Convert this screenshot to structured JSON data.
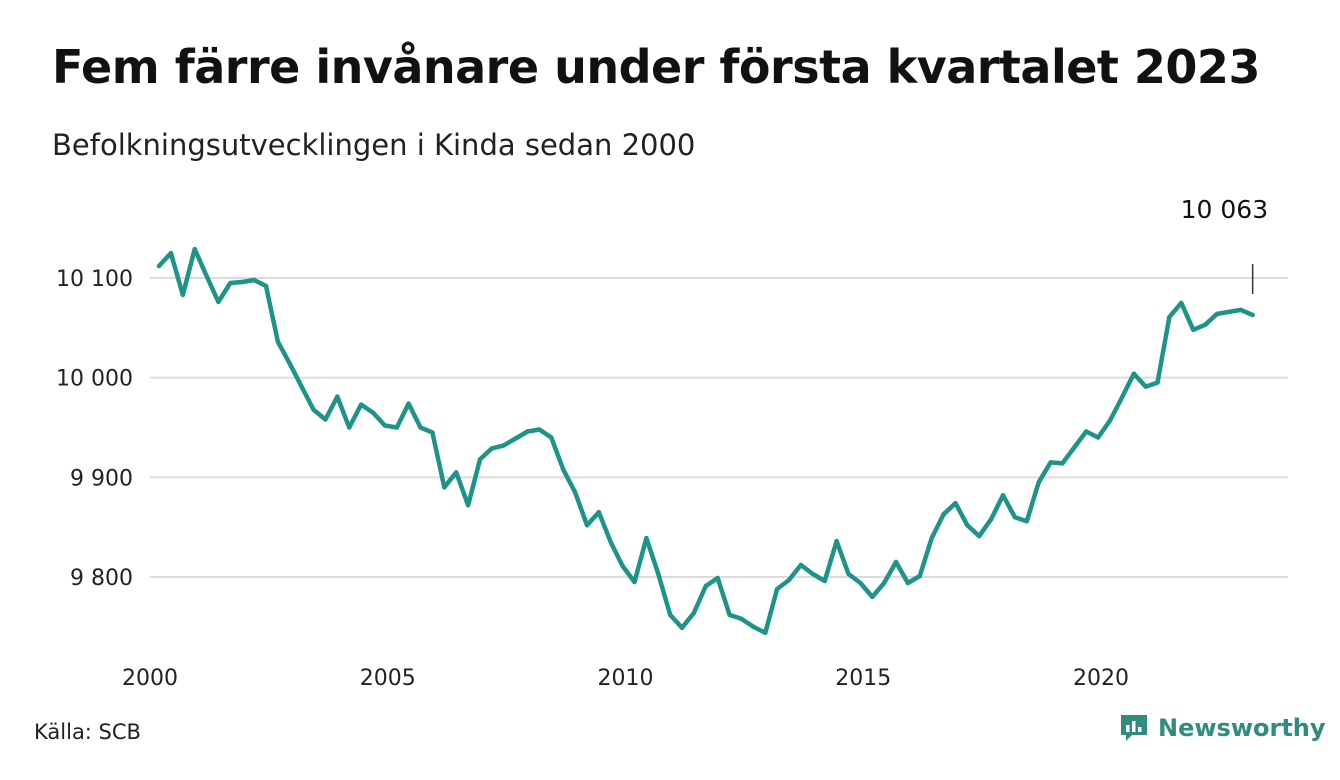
{
  "title": "Fem färre invånare under första kvartalet 2023",
  "subtitle": "Befolkningsutvecklingen i Kinda sedan 2000",
  "source": "Källa: SCB",
  "brand": {
    "name": "Newsworthy",
    "icon": "newsworthy-chart-bubble-icon",
    "color": "#2f8c7e"
  },
  "colors": {
    "line": "#1e9488",
    "grid": "#dcdcdc",
    "text": "#222222"
  },
  "chart_data": {
    "type": "line",
    "title": "Fem färre invånare under första kvartalet 2023",
    "subtitle": "Befolkningsutvecklingen i Kinda sedan 2000",
    "x_unit": "year (quarterly)",
    "x_start": 2000,
    "x_step": 0.25,
    "xlim": [
      2000,
      2023
    ],
    "ylim": [
      9735,
      10130
    ],
    "x_ticks": [
      2000,
      2005,
      2010,
      2015,
      2020
    ],
    "x_tick_labels": [
      "2000",
      "2005",
      "2010",
      "2015",
      "2020"
    ],
    "y_ticks": [
      9800,
      9900,
      10000,
      10100
    ],
    "y_tick_labels": [
      "9 800",
      "9 900",
      "10 000",
      "10 100"
    ],
    "grid": "horizontal",
    "legend": "none",
    "last_label": "10 063",
    "values": [
      10112,
      10125,
      10083,
      10129,
      10102,
      10076,
      10095,
      10096,
      10098,
      10092,
      10036,
      10014,
      9991,
      9968,
      9958,
      9981,
      9950,
      9973,
      9965,
      9952,
      9950,
      9974,
      9950,
      9945,
      9890,
      9905,
      9872,
      9918,
      9929,
      9932,
      9939,
      9946,
      9948,
      9940,
      9908,
      9885,
      9852,
      9865,
      9835,
      9811,
      9795,
      9839,
      9803,
      9762,
      9749,
      9764,
      9791,
      9799,
      9762,
      9758,
      9750,
      9744,
      9788,
      9797,
      9812,
      9803,
      9796,
      9836,
      9803,
      9794,
      9780,
      9794,
      9815,
      9794,
      9801,
      9839,
      9863,
      9874,
      9852,
      9841,
      9858,
      9882,
      9860,
      9856,
      9895,
      9915,
      9914,
      9930,
      9946,
      9940,
      9957,
      9980,
      10004,
      9991,
      9995,
      10061,
      10075,
      10048,
      10053,
      10064,
      10066,
      10068,
      10063
    ]
  }
}
